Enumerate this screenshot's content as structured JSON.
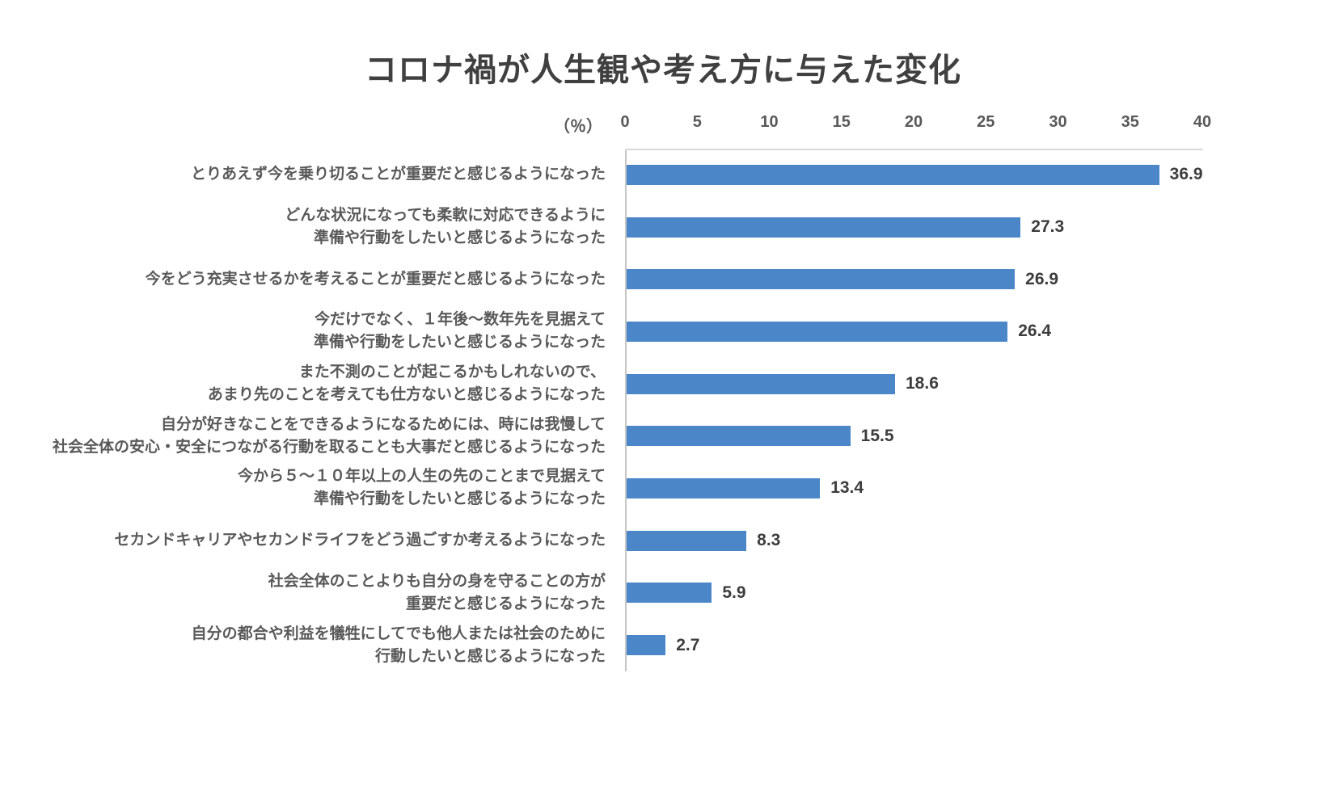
{
  "title": "コロナ禍が人生観や考え方に与えた変化",
  "chart_data": {
    "type": "bar",
    "orientation": "horizontal",
    "title": "コロナ禍が人生観や考え方に与えた変化",
    "unit_label": "（％）",
    "xlim": [
      0,
      40
    ],
    "x_ticks": [
      0,
      5,
      10,
      15,
      20,
      25,
      30,
      35,
      40
    ],
    "grid": false,
    "legend": "none",
    "categories": [
      [
        "とりあえず今を乗り切ることが重要だと感じるようになった"
      ],
      [
        "どんな状況になっても柔軟に対応できるように",
        "準備や行動をしたいと感じるようになった"
      ],
      [
        "今をどう充実させるかを考えることが重要だと感じるようになった"
      ],
      [
        "今だけでなく、１年後～数年先を見据えて",
        "準備や行動をしたいと感じるようになった"
      ],
      [
        "また不測のことが起こるかもしれないので、",
        "あまり先のことを考えても仕方ないと感じるようになった"
      ],
      [
        "自分が好きなことをできるようになるためには、時には我慢して",
        "社会全体の安心・安全につながる行動を取ることも大事だと感じるようになった"
      ],
      [
        "今から５～１０年以上の人生の先のことまで見据えて",
        "準備や行動をしたいと感じるようになった"
      ],
      [
        "セカンドキャリアやセカンドライフをどう過ごすか考えるようになった"
      ],
      [
        "社会全体のことよりも自分の身を守ることの方が",
        "重要だと感じるようになった"
      ],
      [
        "自分の都合や利益を犠牲にしてでも他人または社会のために",
        "行動したいと感じるようになった"
      ]
    ],
    "values": [
      36.9,
      27.3,
      26.9,
      26.4,
      18.6,
      15.5,
      13.4,
      8.3,
      5.9,
      2.7
    ],
    "value_labels": [
      "36.9",
      "27.3",
      "26.9",
      "26.4",
      "18.6",
      "15.5",
      "13.4",
      "8.3",
      "5.9",
      "2.7"
    ]
  },
  "colors": {
    "bar": "#4a86c8",
    "title_text": "#404040",
    "category_text": "#595959",
    "value_text": "#3d3d3d",
    "axis_line": "#c6c6c6",
    "plot_border": "#d9d9d9"
  }
}
